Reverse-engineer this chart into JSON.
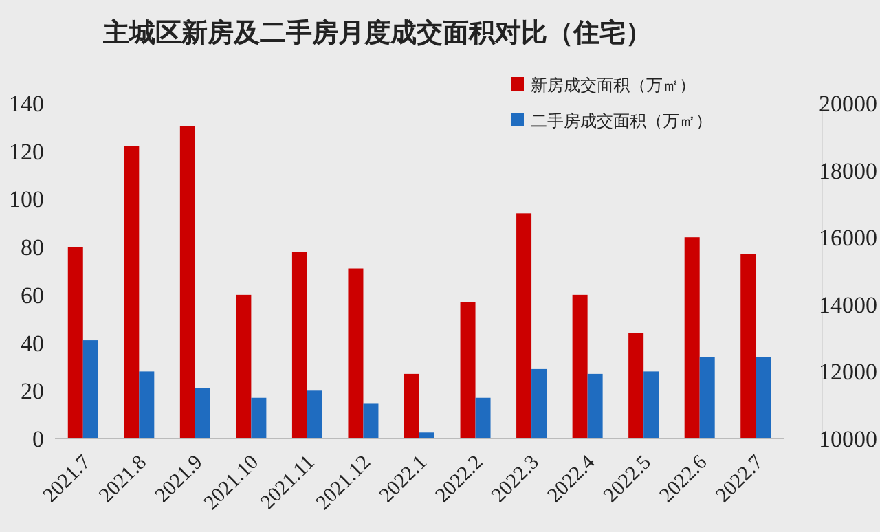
{
  "chart_data": {
    "type": "bar",
    "title": "主城区新房及二手房月度成交面积对比（住宅）",
    "categories": [
      "2021.7",
      "2021.8",
      "2021.9",
      "2021.10",
      "2021.11",
      "2021.12",
      "2022.1",
      "2022.2",
      "2022.3",
      "2022.4",
      "2022.5",
      "2022.6",
      "2022.7"
    ],
    "series": [
      {
        "name": "新房成交面积（万㎡）",
        "color": "#cc0000",
        "values": [
          80,
          122,
          130.5,
          60,
          78,
          71,
          27,
          57,
          94,
          60,
          44,
          84,
          77
        ]
      },
      {
        "name": "二手房成交面积（万㎡）",
        "color": "#1f6cc0",
        "values": [
          41,
          28,
          21,
          17,
          20,
          14.5,
          2.5,
          17,
          29,
          27,
          28,
          34,
          34
        ]
      }
    ],
    "ylim": [
      0,
      140
    ],
    "yticks": [
      0,
      20,
      40,
      60,
      80,
      100,
      120,
      140
    ],
    "y2lim": [
      10000,
      20000
    ],
    "y2ticks": [
      10000,
      12000,
      14000,
      16000,
      18000,
      20000
    ],
    "grid": false,
    "legend": "top right"
  }
}
